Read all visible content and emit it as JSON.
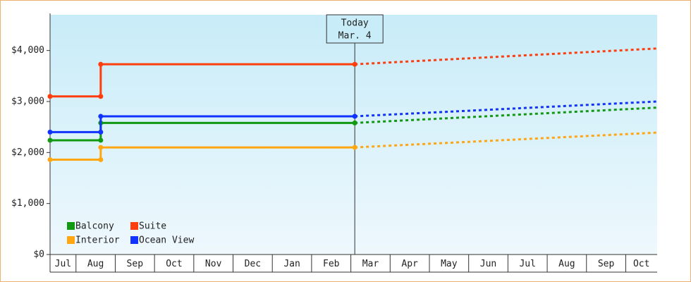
{
  "chart_data": {
    "type": "step-line",
    "months": [
      "Jul",
      "Aug",
      "Sep",
      "Oct",
      "Nov",
      "Dec",
      "Jan",
      "Feb",
      "Mar",
      "Apr",
      "May",
      "Jun",
      "Jul",
      "Aug",
      "Sep",
      "Oct"
    ],
    "xlim": [
      0.34,
      15.8
    ],
    "xticks": [
      1,
      2,
      3,
      4,
      5,
      6,
      7,
      8,
      9,
      10,
      11,
      12,
      13,
      14,
      15
    ],
    "ylim": [
      0,
      4700
    ],
    "yticks": [
      {
        "value": 0,
        "label": "$0"
      },
      {
        "value": 1000,
        "label": "$1,000"
      },
      {
        "value": 2000,
        "label": "$2,000"
      },
      {
        "value": 3000,
        "label": "$3,000"
      },
      {
        "value": 4000,
        "label": "$4,000"
      }
    ],
    "today": {
      "x": 8.1,
      "label": "Today",
      "date": "Mar. 4"
    },
    "series": [
      {
        "name": "Balcony",
        "color": "#119911",
        "x": [
          0.34,
          1.63,
          1.63,
          8.1
        ],
        "values": [
          2240,
          2240,
          2580,
          2580
        ],
        "projection": {
          "x": [
            8.1,
            15.8
          ],
          "values": [
            2580,
            2880
          ]
        }
      },
      {
        "name": "Suite",
        "color": "#ff3d0d",
        "x": [
          0.34,
          1.63,
          1.63,
          8.1
        ],
        "values": [
          3100,
          3100,
          3730,
          3730
        ],
        "projection": {
          "x": [
            8.1,
            15.8
          ],
          "values": [
            3730,
            4040
          ]
        }
      },
      {
        "name": "Interior",
        "color": "#ffa611",
        "x": [
          0.34,
          1.63,
          1.63,
          8.1
        ],
        "values": [
          1860,
          1860,
          2100,
          2100
        ],
        "projection": {
          "x": [
            8.1,
            15.8
          ],
          "values": [
            2100,
            2390
          ]
        }
      },
      {
        "name": "Ocean View",
        "color": "#1133ff",
        "x": [
          0.34,
          1.63,
          1.63,
          8.1
        ],
        "values": [
          2400,
          2400,
          2710,
          2710
        ],
        "projection": {
          "x": [
            8.1,
            15.8
          ],
          "values": [
            2710,
            3000
          ]
        }
      }
    ]
  }
}
